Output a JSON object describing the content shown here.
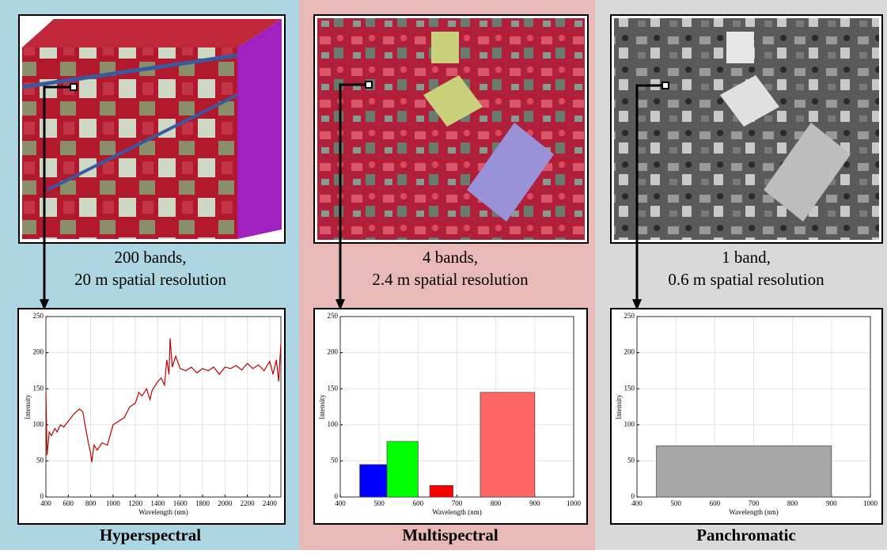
{
  "chart_data": [
    {
      "type": "line",
      "title": "Hyperspectral",
      "caption": [
        "200 bands,",
        "20 m spatial resolution"
      ],
      "xlabel": "Wavelength (nm)",
      "ylabel": "Intensity",
      "color": "#c00000",
      "x": [
        400,
        410,
        430,
        450,
        480,
        500,
        530,
        560,
        600,
        650,
        700,
        730,
        750,
        780,
        800,
        810,
        830,
        860,
        900,
        950,
        1000,
        1050,
        1100,
        1150,
        1200,
        1230,
        1260,
        1300,
        1330,
        1350,
        1400,
        1430,
        1460,
        1480,
        1500,
        1510,
        1530,
        1560,
        1600,
        1650,
        1700,
        1750,
        1800,
        1850,
        1900,
        1950,
        2000,
        2050,
        2100,
        2150,
        2200,
        2250,
        2300,
        2350,
        2400,
        2430,
        2460,
        2480,
        2500
      ],
      "values": [
        145,
        58,
        90,
        85,
        95,
        90,
        100,
        97,
        105,
        115,
        122,
        118,
        100,
        75,
        60,
        48,
        72,
        65,
        75,
        72,
        100,
        105,
        110,
        125,
        130,
        145,
        140,
        150,
        135,
        148,
        160,
        165,
        155,
        190,
        170,
        220,
        180,
        195,
        178,
        175,
        180,
        172,
        178,
        175,
        180,
        170,
        180,
        178,
        182,
        176,
        185,
        178,
        183,
        175,
        188,
        170,
        190,
        160,
        213
      ],
      "xlim": [
        400,
        2500
      ],
      "xticks": [
        400,
        600,
        800,
        1000,
        1200,
        1400,
        1600,
        1800,
        2000,
        2200,
        2400
      ],
      "ylim": [
        0,
        250
      ],
      "yticks": [
        0,
        50,
        100,
        150,
        200,
        250
      ],
      "grid": true
    },
    {
      "type": "bar",
      "title": "Multispectral",
      "caption": [
        "4 bands,",
        "2.4 m spatial resolution"
      ],
      "xlabel": "Wavelength (nm)",
      "ylabel": "Intensity",
      "x_ranges": [
        [
          450,
          520
        ],
        [
          520,
          600
        ],
        [
          630,
          690
        ],
        [
          760,
          900
        ]
      ],
      "values": [
        45,
        77,
        16,
        145
      ],
      "colors": [
        "#0000ff",
        "#00ff00",
        "#ff0000",
        "#ff6666"
      ],
      "xlim": [
        400,
        1000
      ],
      "xticks": [
        400,
        500,
        600,
        700,
        800,
        900,
        1000
      ],
      "ylim": [
        0,
        250
      ],
      "yticks": [
        0,
        50,
        100,
        150,
        200,
        250
      ],
      "grid": true
    },
    {
      "type": "bar",
      "title": "Panchromatic",
      "caption": [
        "1 band,",
        "0.6 m spatial resolution"
      ],
      "xlabel": "Wavelength (nm)",
      "ylabel": "Intensity",
      "x_ranges": [
        [
          450,
          900
        ]
      ],
      "values": [
        71
      ],
      "colors": [
        "#a6a6a6"
      ],
      "xlim": [
        400,
        1000
      ],
      "xticks": [
        400,
        500,
        600,
        700,
        800,
        900,
        1000
      ],
      "ylim": [
        0,
        250
      ],
      "yticks": [
        0,
        50,
        100,
        150,
        200,
        250
      ],
      "grid": true
    }
  ]
}
